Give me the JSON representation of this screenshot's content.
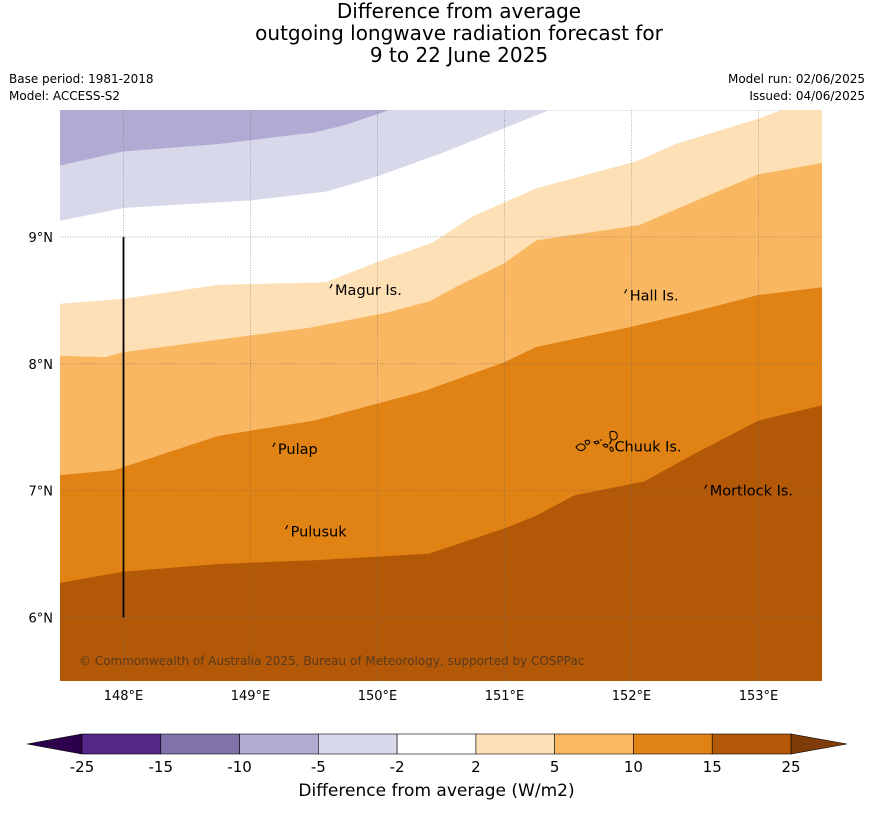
{
  "title": {
    "line1": "Difference from average",
    "line2": "outgoing longwave radiation forecast for",
    "line3": "9 to 22 June 2025"
  },
  "meta": {
    "base_period": "Base period: 1981-2018",
    "model": "Model: ACCESS-S2",
    "model_run": "Model run: 02/06/2025",
    "issued": "Issued: 04/06/2025"
  },
  "map": {
    "lon_range": [
      147.5,
      153.5
    ],
    "lat_range": [
      5.5,
      10.0
    ],
    "x_ticks": [
      {
        "value": 148,
        "label": "148°E"
      },
      {
        "value": 149,
        "label": "149°E"
      },
      {
        "value": 150,
        "label": "150°E"
      },
      {
        "value": 151,
        "label": "151°E"
      },
      {
        "value": 152,
        "label": "152°E"
      },
      {
        "value": 153,
        "label": "153°E"
      }
    ],
    "y_ticks": [
      {
        "value": 6,
        "label": "6°N"
      },
      {
        "value": 7,
        "label": "7°N"
      },
      {
        "value": 8,
        "label": "8°N"
      },
      {
        "value": 9,
        "label": "9°N"
      }
    ],
    "places": [
      {
        "name": "Magur Is.",
        "lon": 149.65,
        "lat": 8.58
      },
      {
        "name": "Hall Is.",
        "lon": 151.97,
        "lat": 8.54
      },
      {
        "name": "Pulap",
        "lon": 149.2,
        "lat": 7.33
      },
      {
        "name": "Chuuk Is.",
        "lon": 151.85,
        "lat": 7.35
      },
      {
        "name": "Mortlock Is.",
        "lon": 152.6,
        "lat": 7.0
      },
      {
        "name": "Pulusuk",
        "lon": 149.3,
        "lat": 6.68
      }
    ],
    "meridian_line": {
      "lon": 148.0,
      "lat_from": 6.0,
      "lat_to": 9.0
    },
    "copyright": "© Commonwealth of Australia 2025, Bureau of Meteorology, supported by COSPPac",
    "contours": [
      {
        "band": "-15 to -10",
        "color": "#b1aad3",
        "upper": [
          [
            147.5,
            10.0
          ],
          [
            153.5,
            10.0
          ]
        ],
        "lower": [
          [
            147.5,
            9.56
          ],
          [
            147.99,
            9.67
          ],
          [
            148.75,
            9.73
          ],
          [
            149.5,
            9.82
          ],
          [
            149.75,
            9.88
          ],
          [
            150.1,
            10.0
          ]
        ]
      },
      {
        "band": "-10 to -5",
        "color": "#d8d8eb",
        "upper": [
          [
            147.5,
            9.56
          ],
          [
            147.99,
            9.67
          ],
          [
            148.75,
            9.73
          ],
          [
            149.5,
            9.82
          ],
          [
            149.75,
            9.88
          ],
          [
            150.1,
            10.0
          ],
          [
            151.35,
            10.0
          ]
        ],
        "lower": [
          [
            147.5,
            9.13
          ],
          [
            148.0,
            9.23
          ],
          [
            149.0,
            9.29
          ],
          [
            149.6,
            9.36
          ],
          [
            150.0,
            9.48
          ],
          [
            150.5,
            9.66
          ],
          [
            151.35,
            10.0
          ]
        ]
      },
      {
        "band": "2 to 5",
        "color": "#fde0b6",
        "upper": [
          [
            147.5,
            8.47
          ],
          [
            148.0,
            8.51
          ],
          [
            148.75,
            8.62
          ],
          [
            149.59,
            8.64
          ],
          [
            150.0,
            8.8
          ],
          [
            150.43,
            8.95
          ],
          [
            150.75,
            9.16
          ],
          [
            151.25,
            9.38
          ],
          [
            152.06,
            9.6
          ],
          [
            152.35,
            9.73
          ],
          [
            153.0,
            9.93
          ],
          [
            153.19,
            10.0
          ],
          [
            153.5,
            10.0
          ]
        ],
        "lower": [
          [
            147.5,
            8.06
          ],
          [
            147.86,
            8.05
          ],
          [
            148.0,
            8.09
          ],
          [
            148.69,
            8.18
          ],
          [
            149.46,
            8.28
          ],
          [
            150.07,
            8.4
          ],
          [
            150.41,
            8.49
          ],
          [
            150.63,
            8.61
          ],
          [
            151.0,
            8.79
          ],
          [
            151.25,
            8.97
          ],
          [
            152.06,
            9.09
          ],
          [
            152.5,
            9.28
          ],
          [
            153.0,
            9.49
          ],
          [
            153.5,
            9.58
          ]
        ]
      },
      {
        "band": "5 to 10",
        "color": "#fab761",
        "upper": [
          [
            147.5,
            8.06
          ],
          [
            147.86,
            8.05
          ],
          [
            148.0,
            8.09
          ],
          [
            148.69,
            8.18
          ],
          [
            149.46,
            8.28
          ],
          [
            150.07,
            8.4
          ],
          [
            150.41,
            8.49
          ],
          [
            150.63,
            8.61
          ],
          [
            151.0,
            8.79
          ],
          [
            151.25,
            8.97
          ],
          [
            152.06,
            9.09
          ],
          [
            152.5,
            9.28
          ],
          [
            153.0,
            9.49
          ],
          [
            153.5,
            9.58
          ]
        ],
        "lower": [
          [
            147.5,
            7.12
          ],
          [
            147.93,
            7.16
          ],
          [
            148.75,
            7.43
          ],
          [
            149.5,
            7.55
          ],
          [
            150.36,
            7.78
          ],
          [
            151.0,
            8.01
          ],
          [
            151.25,
            8.13
          ],
          [
            152.0,
            8.29
          ],
          [
            152.5,
            8.41
          ],
          [
            153.0,
            8.54
          ],
          [
            153.5,
            8.6
          ]
        ]
      },
      {
        "band": "10 to 15",
        "color": "#e08214",
        "upper": [
          [
            147.5,
            7.12
          ],
          [
            147.93,
            7.16
          ],
          [
            148.75,
            7.43
          ],
          [
            149.5,
            7.55
          ],
          [
            150.36,
            7.78
          ],
          [
            151.0,
            8.01
          ],
          [
            151.25,
            8.13
          ],
          [
            152.0,
            8.29
          ],
          [
            152.5,
            8.41
          ],
          [
            153.0,
            8.54
          ],
          [
            153.5,
            8.6
          ]
        ],
        "lower": [
          [
            147.5,
            6.27
          ],
          [
            148.0,
            6.36
          ],
          [
            148.75,
            6.42
          ],
          [
            149.5,
            6.45
          ],
          [
            150.4,
            6.5
          ],
          [
            151.0,
            6.7
          ],
          [
            151.25,
            6.8
          ],
          [
            151.55,
            6.96
          ],
          [
            152.1,
            7.07
          ],
          [
            152.5,
            7.29
          ],
          [
            153.0,
            7.55
          ],
          [
            153.5,
            7.67
          ]
        ]
      },
      {
        "band": "15 to 25",
        "color": "#b35806",
        "upper": [
          [
            147.5,
            6.27
          ],
          [
            148.0,
            6.36
          ],
          [
            148.75,
            6.42
          ],
          [
            149.5,
            6.45
          ],
          [
            150.4,
            6.5
          ],
          [
            151.0,
            6.7
          ],
          [
            151.25,
            6.8
          ],
          [
            151.55,
            6.96
          ],
          [
            152.1,
            7.07
          ],
          [
            152.5,
            7.29
          ],
          [
            153.0,
            7.55
          ],
          [
            153.5,
            7.67
          ]
        ],
        "lower": [
          [
            147.5,
            5.5
          ],
          [
            153.5,
            5.5
          ]
        ]
      }
    ]
  },
  "colorbar": {
    "title": "Difference from average (W/m2)",
    "under_color": "#2d004b",
    "over_color": "#7f3b08",
    "bins": [
      {
        "color": "#542788"
      },
      {
        "color": "#8073ac"
      },
      {
        "color": "#b2abd2"
      },
      {
        "color": "#d8daeb"
      },
      {
        "color": "#ffffff"
      },
      {
        "color": "#fee0b6"
      },
      {
        "color": "#fdb863"
      },
      {
        "color": "#e08214"
      },
      {
        "color": "#b35806"
      }
    ],
    "labels": [
      "-25",
      "-15",
      "-10",
      "-5",
      "-2",
      "2",
      "5",
      "10",
      "15",
      "25"
    ]
  }
}
